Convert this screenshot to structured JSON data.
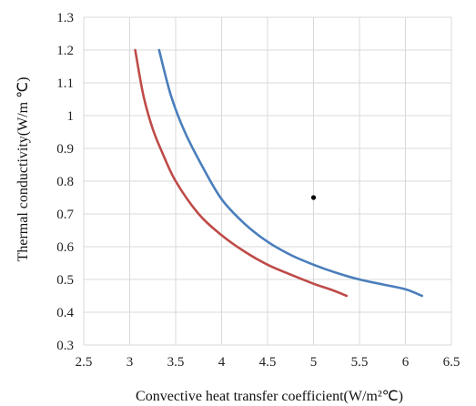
{
  "chart_data": {
    "type": "line",
    "title": "",
    "xlabel": "Convective heat transfer coefficient(W/m²℃)",
    "ylabel": "Thermal conductivity(W/m ℃)",
    "xlim": [
      2.5,
      6.5
    ],
    "ylim": [
      0.3,
      1.3
    ],
    "x_ticks": [
      "2.5",
      "3",
      "3.5",
      "4",
      "4.5",
      "5",
      "5.5",
      "6",
      "6.5"
    ],
    "y_ticks": [
      "0.3",
      "0.4",
      "0.5",
      "0.6",
      "0.7",
      "0.8",
      "0.9",
      "1",
      "1.1",
      "1.2",
      "1.3"
    ],
    "grid": "on",
    "legend": "none",
    "series": [
      {
        "color": "#4a7ebb",
        "points": [
          [
            3.32,
            1.2
          ],
          [
            3.45,
            1.06
          ],
          [
            3.6,
            0.95
          ],
          [
            3.8,
            0.84
          ],
          [
            4.0,
            0.745
          ],
          [
            4.25,
            0.67
          ],
          [
            4.5,
            0.615
          ],
          [
            4.75,
            0.575
          ],
          [
            5.0,
            0.545
          ],
          [
            5.25,
            0.52
          ],
          [
            5.5,
            0.5
          ],
          [
            5.75,
            0.485
          ],
          [
            6.0,
            0.47
          ],
          [
            6.18,
            0.45
          ]
        ]
      },
      {
        "color": "#be4b48",
        "points": [
          [
            3.06,
            1.2
          ],
          [
            3.15,
            1.06
          ],
          [
            3.25,
            0.96
          ],
          [
            3.35,
            0.89
          ],
          [
            3.5,
            0.8
          ],
          [
            3.75,
            0.7
          ],
          [
            4.0,
            0.635
          ],
          [
            4.25,
            0.585
          ],
          [
            4.5,
            0.545
          ],
          [
            4.75,
            0.515
          ],
          [
            5.0,
            0.487
          ],
          [
            5.2,
            0.468
          ],
          [
            5.36,
            0.45
          ]
        ]
      }
    ],
    "markers": [
      {
        "x": 5.0,
        "y": 0.75,
        "color": "#000000"
      }
    ]
  }
}
